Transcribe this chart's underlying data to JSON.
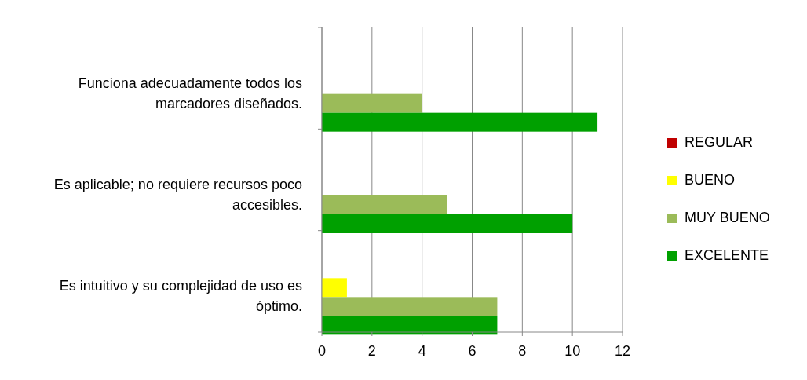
{
  "chart_data": {
    "type": "bar",
    "orientation": "horizontal",
    "categories": [
      "Funciona adecuadamente todos los marcadores diseñados.",
      "Es aplicable; no requiere recursos poco accesibles.",
      "Es intuitivo y su complejidad de uso es óptimo."
    ],
    "series": [
      {
        "name": "REGULAR",
        "color": "#c00000",
        "values": [
          0,
          0,
          0
        ]
      },
      {
        "name": "BUENO",
        "color": "#ffff00",
        "values": [
          0,
          0,
          1
        ]
      },
      {
        "name": "MUY BUENO",
        "color": "#9bbb59",
        "values": [
          4,
          5,
          7
        ]
      },
      {
        "name": "EXCELENTE",
        "color": "#00a000",
        "values": [
          11,
          10,
          7
        ]
      }
    ],
    "xlim": [
      0,
      12
    ],
    "xticks": [
      0,
      2,
      4,
      6,
      8,
      10,
      12
    ],
    "grid": "x",
    "legend": "right"
  }
}
